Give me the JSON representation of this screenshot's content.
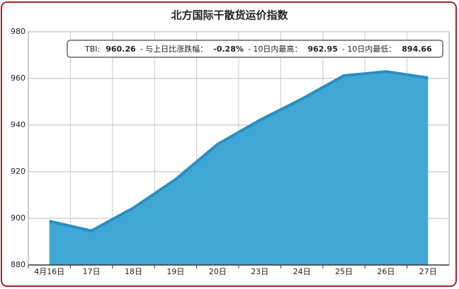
{
  "chart_data": {
    "type": "area",
    "title": "北方国际干散货运价指数",
    "categories": [
      "4月16日",
      "17日",
      "18日",
      "19日",
      "20日",
      "23日",
      "24日",
      "25日",
      "26日",
      "27日"
    ],
    "series": [
      {
        "name": "TBI",
        "color": "#2a8fc0",
        "fill": "#3fa7d6",
        "values": [
          898.8,
          894.66,
          904.5,
          916.7,
          931.8,
          942.1,
          951.2,
          961.2,
          962.95,
          960.26
        ]
      }
    ],
    "ylim": [
      880,
      980
    ],
    "yticks": [
      880,
      900,
      920,
      940,
      960,
      980
    ],
    "grid": true,
    "annotation": [
      {
        "label": "TBI:",
        "value": "960.26"
      },
      {
        "label": "- 与上日比涨跌幅：",
        "value": "-0.28%"
      },
      {
        "label": "- 10日内最高：",
        "value": "962.95"
      },
      {
        "label": "- 10日内最低：",
        "value": "894.66"
      }
    ]
  }
}
